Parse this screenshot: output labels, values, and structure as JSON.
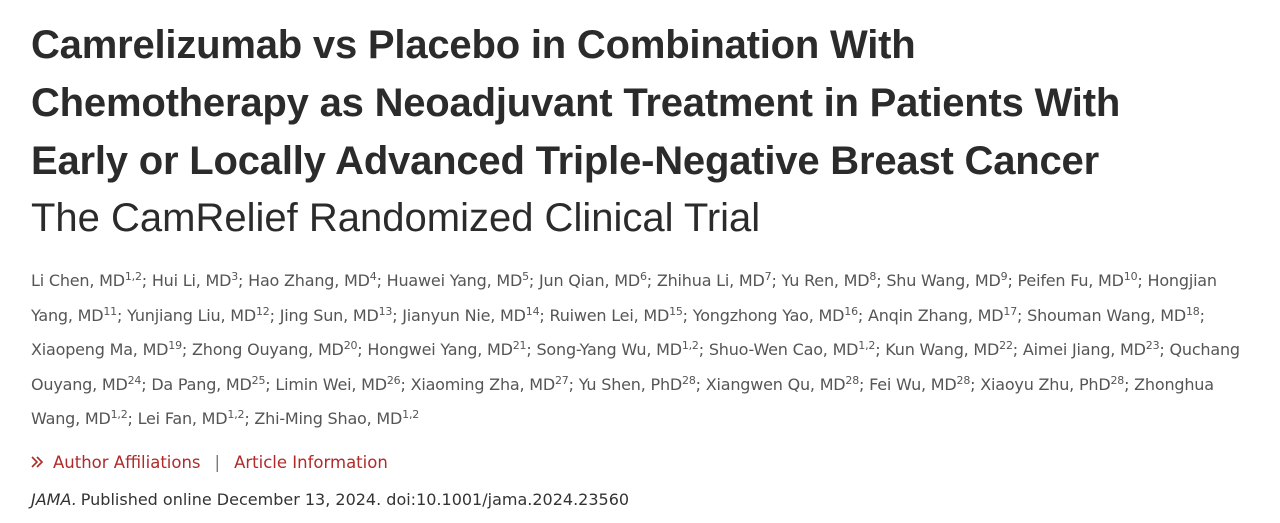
{
  "article": {
    "title_lines": [
      "Camrelizumab vs Placebo in Combination With",
      "Chemotherapy as Neoadjuvant Treatment in Patients With",
      "Early or Locally Advanced Triple-Negative Breast Cancer"
    ],
    "subtitle": "The CamRelief Randomized Clinical Trial",
    "author_separator": ";",
    "authors": [
      {
        "name": "Li Chen, MD",
        "affiliations": "1,2"
      },
      {
        "name": "Hui Li, MD",
        "affiliations": "3"
      },
      {
        "name": "Hao Zhang, MD",
        "affiliations": "4"
      },
      {
        "name": "Huawei Yang, MD",
        "affiliations": "5"
      },
      {
        "name": "Jun Qian, MD",
        "affiliations": "6"
      },
      {
        "name": "Zhihua Li, MD",
        "affiliations": "7"
      },
      {
        "name": "Yu Ren, MD",
        "affiliations": "8"
      },
      {
        "name": "Shu Wang, MD",
        "affiliations": "9"
      },
      {
        "name": "Peifen Fu, MD",
        "affiliations": "10"
      },
      {
        "name": "Hongjian Yang, MD",
        "affiliations": "11"
      },
      {
        "name": "Yunjiang Liu, MD",
        "affiliations": "12"
      },
      {
        "name": "Jing Sun, MD",
        "affiliations": "13"
      },
      {
        "name": "Jianyun Nie, MD",
        "affiliations": "14"
      },
      {
        "name": "Ruiwen Lei, MD",
        "affiliations": "15"
      },
      {
        "name": "Yongzhong Yao, MD",
        "affiliations": "16"
      },
      {
        "name": "Anqin Zhang, MD",
        "affiliations": "17"
      },
      {
        "name": "Shouman Wang, MD",
        "affiliations": "18"
      },
      {
        "name": "Xiaopeng Ma, MD",
        "affiliations": "19"
      },
      {
        "name": "Zhong Ouyang, MD",
        "affiliations": "20"
      },
      {
        "name": "Hongwei Yang, MD",
        "affiliations": "21"
      },
      {
        "name": "Song-Yang Wu, MD",
        "affiliations": "1,2"
      },
      {
        "name": "Shuo-Wen Cao, MD",
        "affiliations": "1,2"
      },
      {
        "name": "Kun Wang, MD",
        "affiliations": "22"
      },
      {
        "name": "Aimei Jiang, MD",
        "affiliations": "23"
      },
      {
        "name": "Quchang Ouyang, MD",
        "affiliations": "24"
      },
      {
        "name": "Da Pang, MD",
        "affiliations": "25"
      },
      {
        "name": "Limin Wei, MD",
        "affiliations": "26"
      },
      {
        "name": "Xiaoming Zha, MD",
        "affiliations": "27"
      },
      {
        "name": "Yu Shen, PhD",
        "affiliations": "28"
      },
      {
        "name": "Xiangwen Qu, MD",
        "affiliations": "28"
      },
      {
        "name": "Fei Wu, MD",
        "affiliations": "28"
      },
      {
        "name": "Xiaoyu Zhu, PhD",
        "affiliations": "28"
      },
      {
        "name": "Zhonghua Wang, MD",
        "affiliations": "1,2"
      },
      {
        "name": "Lei Fan, MD",
        "affiliations": "1,2"
      },
      {
        "name": "Zhi-Ming Shao, MD",
        "affiliations": "1,2"
      }
    ],
    "links": [
      "Author Affiliations",
      "Article Information"
    ],
    "link_separator": "|",
    "citation": {
      "journal": "JAMA.",
      "text": "Published online December 13, 2024. doi:10.1001/jama.2024.23560"
    }
  }
}
